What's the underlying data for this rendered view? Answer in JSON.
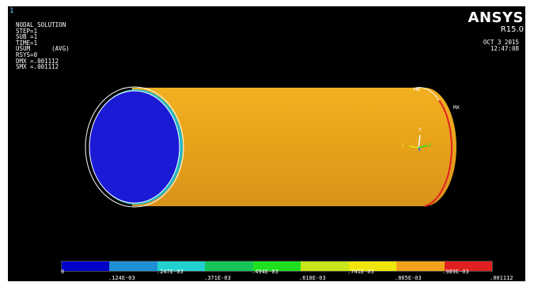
{
  "window_number": "1",
  "info_lines": [
    "NODAL SOLUTION",
    "STEP=1",
    "SUB =1",
    "TIME=1",
    "USUM      (AVG)",
    "RSYS=0",
    "DMX =.001112",
    "SMX =.001112"
  ],
  "brand": {
    "name": "ANSYS",
    "release": "R15.0"
  },
  "date": "OCT  3 2015",
  "time": "12:47:08",
  "markers": {
    "min": "MN",
    "max": "MX",
    "axis_x": "X",
    "axis_y": "Y",
    "axis_z": "Z"
  },
  "colors": {
    "background": "#000000",
    "cylinder_body": "#e6a21a",
    "end_face": "#1b1bd6",
    "max_edge": "#d62020"
  },
  "legend": {
    "colors": [
      "#0000c8",
      "#1f8fd6",
      "#22d0d0",
      "#16c55a",
      "#1ee01e",
      "#c8e619",
      "#f0e60a",
      "#f0a31a",
      "#e02020"
    ],
    "top_labels": [
      "0",
      ".247E-03",
      ".494E-03",
      ".741E-03",
      ".989E-03"
    ],
    "bottom_labels": [
      ".124E-03",
      ".371E-03",
      ".618E-03",
      ".865E-03",
      ".001112"
    ]
  }
}
